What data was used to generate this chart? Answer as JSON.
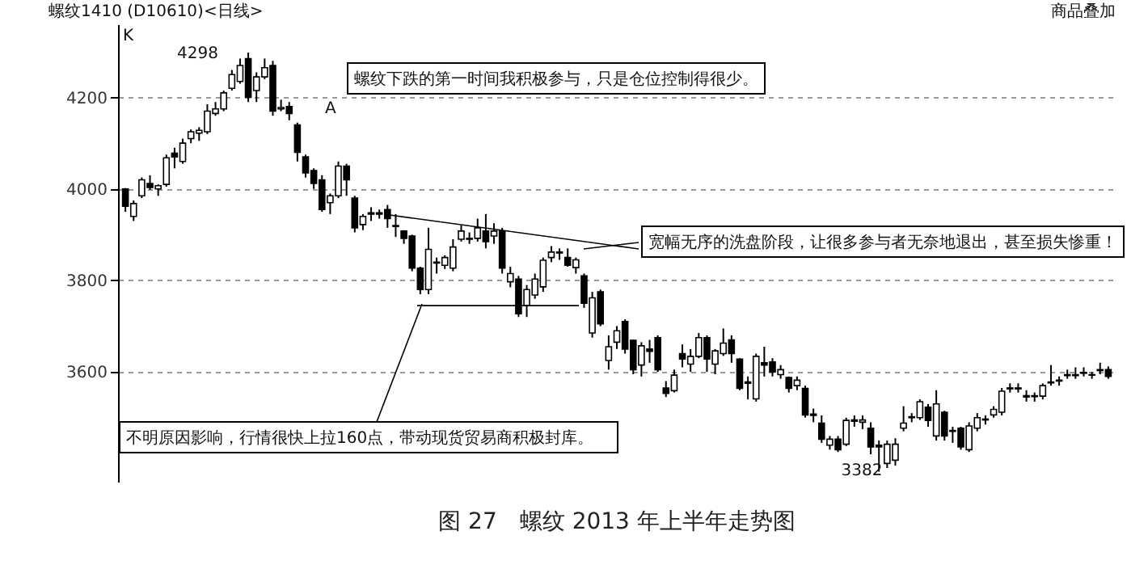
{
  "chart_data": {
    "type": "candlestick",
    "title": "图 27　螺纹 2013 年上半年走势图",
    "annotations": [
      "螺纹1410 (D10610)<日线>",
      "商品叠加",
      "K",
      "A",
      "螺纹下跌的第一时间我积极参与，只是仓位控制得很少。",
      "宽幅无序的洗盘阶段，让很多参与者无奈地退出，甚至损失惨重！",
      "不明原因影响，行情很快上拉160点，带动现货贸易商积极封库。",
      "4298",
      "3382"
    ],
    "categories": [
      null,
      null,
      null,
      null,
      null,
      null,
      null,
      null,
      null,
      null,
      null,
      null,
      null,
      null,
      null,
      null,
      null,
      null,
      null,
      null,
      null,
      null,
      null,
      null,
      null,
      null,
      null,
      null,
      null,
      null,
      null,
      null,
      null,
      null,
      null,
      null,
      null,
      null,
      null,
      null,
      null,
      null,
      null,
      null,
      null,
      null,
      null,
      null,
      null,
      null,
      null,
      null,
      null,
      null,
      null,
      null,
      null,
      null,
      null,
      null,
      null,
      null,
      null,
      null,
      null,
      null,
      null,
      null,
      null,
      null,
      null,
      null,
      null,
      null,
      null,
      null,
      null,
      null,
      null,
      null,
      null,
      null,
      null,
      null,
      null,
      null,
      null,
      null,
      null,
      null,
      null,
      null,
      null,
      null,
      null,
      null,
      null,
      null,
      null,
      null,
      null,
      null,
      null,
      null,
      null,
      null,
      null,
      null,
      null,
      null,
      null,
      null,
      null,
      null,
      null,
      null,
      null,
      null,
      null,
      null,
      null
    ],
    "ohlc": [
      [
        4000,
        4002,
        3950,
        3962
      ],
      [
        3940,
        3975,
        3930,
        3968
      ],
      [
        3985,
        4025,
        3980,
        4020
      ],
      [
        4012,
        4030,
        3998,
        4003
      ],
      [
        4000,
        4010,
        3985,
        4007
      ],
      [
        4010,
        4075,
        4005,
        4068
      ],
      [
        4078,
        4090,
        4045,
        4070
      ],
      [
        4060,
        4110,
        4055,
        4100
      ],
      [
        4110,
        4130,
        4100,
        4125
      ],
      [
        4122,
        4135,
        4105,
        4128
      ],
      [
        4125,
        4185,
        4120,
        4170
      ],
      [
        4165,
        4190,
        4160,
        4175
      ],
      [
        4175,
        4215,
        4170,
        4210
      ],
      [
        4220,
        4260,
        4215,
        4250
      ],
      [
        4235,
        4285,
        4230,
        4270
      ],
      [
        4285,
        4298,
        4190,
        4200
      ],
      [
        4215,
        4255,
        4190,
        4245
      ],
      [
        4245,
        4285,
        4240,
        4265
      ],
      [
        4270,
        4280,
        4160,
        4170
      ],
      [
        4175,
        4195,
        4170,
        4178
      ],
      [
        4180,
        4190,
        4150,
        4165
      ],
      [
        4140,
        4145,
        4060,
        4080
      ],
      [
        4070,
        4075,
        4025,
        4035
      ],
      [
        4040,
        4045,
        4000,
        4012
      ],
      [
        4020,
        4030,
        3950,
        3955
      ],
      [
        3970,
        3990,
        3945,
        3985
      ],
      [
        3985,
        4060,
        3980,
        4050
      ],
      [
        4050,
        4055,
        3985,
        4020
      ],
      [
        3980,
        3985,
        3905,
        3915
      ],
      [
        3922,
        3945,
        3910,
        3940
      ],
      [
        3945,
        3960,
        3930,
        3948
      ],
      [
        3948,
        3955,
        3935,
        3945
      ],
      [
        3955,
        3965,
        3915,
        3935
      ],
      [
        3920,
        3945,
        3895,
        3918
      ],
      [
        3908,
        3910,
        3880,
        3892
      ],
      [
        3897,
        3900,
        3820,
        3827
      ],
      [
        3827,
        3830,
        3770,
        3780
      ],
      [
        3780,
        3915,
        3770,
        3868
      ],
      [
        3838,
        3850,
        3815,
        3840
      ],
      [
        3833,
        3855,
        3825,
        3850
      ],
      [
        3827,
        3890,
        3820,
        3873
      ],
      [
        3890,
        3920,
        3885,
        3908
      ],
      [
        3890,
        3905,
        3880,
        3892
      ],
      [
        3892,
        3935,
        3885,
        3915
      ],
      [
        3908,
        3945,
        3870,
        3885
      ],
      [
        3897,
        3925,
        3880,
        3908
      ],
      [
        3908,
        3915,
        3815,
        3827
      ],
      [
        3797,
        3830,
        3785,
        3815
      ],
      [
        3803,
        3810,
        3720,
        3727
      ],
      [
        3745,
        3790,
        3720,
        3780
      ],
      [
        3768,
        3815,
        3760,
        3803
      ],
      [
        3786,
        3850,
        3775,
        3844
      ],
      [
        3850,
        3875,
        3840,
        3862
      ],
      [
        3862,
        3870,
        3845,
        3860
      ],
      [
        3850,
        3870,
        3830,
        3833
      ],
      [
        3828,
        3850,
        3815,
        3845
      ],
      [
        3810,
        3815,
        3740,
        3750
      ],
      [
        3685,
        3775,
        3675,
        3762
      ],
      [
        3775,
        3780,
        3700,
        3705
      ],
      [
        3625,
        3680,
        3605,
        3655
      ],
      [
        3665,
        3700,
        3650,
        3690
      ],
      [
        3710,
        3715,
        3640,
        3650
      ],
      [
        3669,
        3670,
        3595,
        3605
      ],
      [
        3615,
        3665,
        3590,
        3657
      ],
      [
        3650,
        3670,
        3620,
        3645
      ],
      [
        3675,
        3680,
        3600,
        3605
      ],
      [
        3565,
        3580,
        3545,
        3553
      ],
      [
        3559,
        3605,
        3555,
        3593
      ],
      [
        3640,
        3660,
        3610,
        3628
      ],
      [
        3617,
        3650,
        3600,
        3634
      ],
      [
        3634,
        3685,
        3630,
        3675
      ],
      [
        3675,
        3680,
        3600,
        3628
      ],
      [
        3617,
        3650,
        3595,
        3646
      ],
      [
        3640,
        3695,
        3635,
        3663
      ],
      [
        3670,
        3680,
        3620,
        3640
      ],
      [
        3628,
        3630,
        3560,
        3564
      ],
      [
        3578,
        3590,
        3540,
        3575
      ],
      [
        3541,
        3640,
        3535,
        3634
      ],
      [
        3620,
        3655,
        3590,
        3615
      ],
      [
        3622,
        3630,
        3590,
        3600
      ],
      [
        3594,
        3615,
        3585,
        3605
      ],
      [
        3588,
        3590,
        3555,
        3564
      ],
      [
        3570,
        3590,
        3560,
        3582
      ],
      [
        3564,
        3570,
        3500,
        3506
      ],
      [
        3508,
        3520,
        3490,
        3505
      ],
      [
        3488,
        3505,
        3445,
        3453
      ],
      [
        3440,
        3460,
        3430,
        3453
      ],
      [
        3453,
        3460,
        3425,
        3430
      ],
      [
        3442,
        3500,
        3438,
        3494
      ],
      [
        3495,
        3505,
        3480,
        3492
      ],
      [
        3490,
        3505,
        3475,
        3495
      ],
      [
        3477,
        3490,
        3420,
        3436
      ],
      [
        3440,
        3450,
        3382,
        3436
      ],
      [
        3400,
        3450,
        3390,
        3442
      ],
      [
        3407,
        3455,
        3395,
        3442
      ],
      [
        3477,
        3525,
        3470,
        3488
      ],
      [
        3500,
        3510,
        3490,
        3502
      ],
      [
        3500,
        3540,
        3495,
        3535
      ],
      [
        3523,
        3530,
        3480,
        3494
      ],
      [
        3460,
        3560,
        3450,
        3530
      ],
      [
        3512,
        3515,
        3450,
        3460
      ],
      [
        3470,
        3480,
        3445,
        3472
      ],
      [
        3477,
        3480,
        3430,
        3436
      ],
      [
        3430,
        3490,
        3425,
        3482
      ],
      [
        3477,
        3510,
        3470,
        3500
      ],
      [
        3495,
        3505,
        3485,
        3497
      ],
      [
        3506,
        3525,
        3500,
        3518
      ],
      [
        3512,
        3565,
        3505,
        3558
      ],
      [
        3563,
        3575,
        3555,
        3565
      ],
      [
        3565,
        3575,
        3555,
        3563
      ],
      [
        3548,
        3560,
        3535,
        3545
      ],
      [
        3546,
        3555,
        3535,
        3548
      ],
      [
        3547,
        3575,
        3540,
        3570
      ],
      [
        3576,
        3615,
        3570,
        3578
      ],
      [
        3580,
        3590,
        3570,
        3582
      ],
      [
        3592,
        3605,
        3585,
        3594
      ],
      [
        3594,
        3610,
        3585,
        3592
      ],
      [
        3597,
        3610,
        3590,
        3599
      ],
      [
        3594,
        3600,
        3585,
        3593
      ],
      [
        3605,
        3620,
        3595,
        3603
      ],
      [
        3605,
        3612,
        3585,
        3590
      ]
    ],
    "ref_lines": [
      {
        "axis": "y",
        "value": 3745
      }
    ],
    "ylim": [
      3360,
      4360
    ],
    "yticks": [
      3600,
      3800,
      4000,
      4200
    ],
    "grid": "y",
    "tick_labels": "y"
  }
}
